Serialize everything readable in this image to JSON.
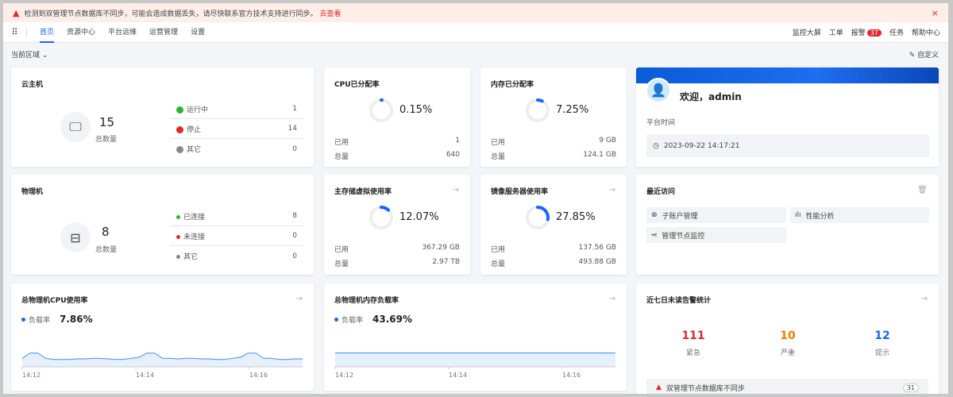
{
  "banner": {
    "message": "检测到双管理节点数据库不同步，可能会造成数据丢失，请尽快联系官方技术支持进行同步。",
    "link": "去查看",
    "close": "×"
  },
  "nav": {
    "tabs": [
      "首页",
      "资源中心",
      "平台运维",
      "运营管理",
      "设置"
    ],
    "active": "首页",
    "right": [
      "监控大屏",
      "工单",
      "报警",
      "任务",
      "帮助中心"
    ],
    "alarm_count": "37"
  },
  "toolbar": {
    "region": "当前区域",
    "customize": "自定义"
  },
  "vm": {
    "title": "云主机",
    "total": "15",
    "total_label": "总数量",
    "rows": [
      {
        "label": "运行中",
        "value": "1",
        "color": "#2bb52b"
      },
      {
        "label": "停止",
        "value": "14",
        "color": "#e5262b"
      },
      {
        "label": "其它",
        "value": "0",
        "color": "#888888"
      }
    ]
  },
  "pm": {
    "title": "物理机",
    "total": "8",
    "total_label": "总数量",
    "rows": [
      {
        "label": "已连接",
        "value": "8",
        "color": "#2bb52b"
      },
      {
        "label": "未连接",
        "value": "0",
        "color": "#e5262b"
      },
      {
        "label": "其它",
        "value": "0",
        "color": "#888888"
      }
    ]
  },
  "gauges": [
    {
      "title": "CPU已分配率",
      "pct": "0.15%",
      "value": 0.15,
      "used_label": "已用",
      "used": "1",
      "total_label": "总量",
      "total": "640"
    },
    {
      "title": "内存已分配率",
      "pct": "7.25%",
      "value": 7.25,
      "used_label": "已用",
      "used": "9 GB",
      "total_label": "总量",
      "total": "124.1 GB"
    },
    {
      "title": "主存储虚拟使用率",
      "pct": "12.07%",
      "value": 12.07,
      "used_label": "已用",
      "used": "367.29 GB",
      "total_label": "总量",
      "total": "2.97 TB"
    },
    {
      "title": "镜像服务器使用率",
      "pct": "27.85%",
      "value": 27.85,
      "used_label": "已用",
      "used": "137.56 GB",
      "total_label": "总量",
      "total": "493.88 GB"
    }
  ],
  "welcome": {
    "greeting": "欢迎，admin",
    "time_label": "平台时间",
    "time": "2023-09-22 14:17:21"
  },
  "recent": {
    "title": "最近访问",
    "items": [
      "子账户管理",
      "性能分析",
      "管理节点监控"
    ]
  },
  "alerts": {
    "title": "近七日未读告警统计",
    "stats": [
      {
        "n": "111",
        "label": "紧急",
        "color": "#e5262b"
      },
      {
        "n": "10",
        "label": "严重",
        "color": "#f57c00"
      },
      {
        "n": "12",
        "label": "提示",
        "color": "#1664ff"
      }
    ],
    "item": "双管理节点数据库不同步",
    "item_count": "31"
  },
  "chart_data": [
    {
      "type": "area",
      "title": "总物理机CPU使用率",
      "legend": "负载率",
      "current": "7.86%",
      "x_ticks": [
        "14:12",
        "14:14",
        "14:16"
      ],
      "ylim": [
        0,
        30
      ],
      "values": [
        8,
        13,
        13,
        8,
        7,
        7,
        7,
        7.5,
        7.5,
        8,
        8,
        7.5,
        7,
        7,
        8,
        9,
        13,
        13,
        8,
        8,
        7.5,
        8,
        8,
        7.5,
        7.5,
        7,
        7,
        8,
        9,
        13,
        13,
        8,
        8,
        7,
        7,
        7.5,
        7.5
      ]
    },
    {
      "type": "area",
      "title": "总物理机内存负载率",
      "legend": "负载率",
      "current": "43.69%",
      "x_ticks": [
        "14:12",
        "14:14",
        "14:16"
      ],
      "ylim": [
        0,
        100
      ],
      "values": [
        43.7,
        43.7,
        43.7,
        43.7,
        43.7,
        43.7,
        43.7,
        43.7,
        43.7,
        43.7,
        43.7,
        43.7
      ]
    }
  ]
}
